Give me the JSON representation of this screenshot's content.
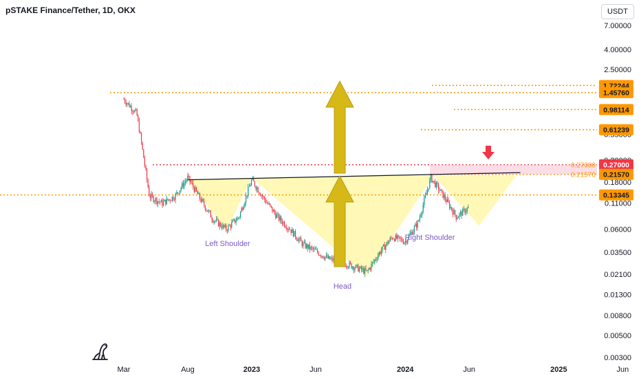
{
  "header": {
    "title": "pSTAKE Finance/Tether, 1D, OKX",
    "currency_button": "USDT"
  },
  "colors": {
    "orange": "#ff9800",
    "red": "#f23645",
    "pink": "#f8bbd0",
    "yellow_fill": "#fff59d",
    "arrow_yellow": "#d6b917",
    "candle_up": "#089981",
    "candle_down": "#f23645",
    "label_text": "#131722",
    "pattern_text": "#7e57c2"
  },
  "chart_data": {
    "type": "candlestick",
    "y_scale": "log",
    "y_ticks": [
      "7.00000",
      "4.00000",
      "2.50000",
      "1.50000",
      "0.95000",
      "0.55000",
      "0.30000",
      "0.18000",
      "0.11000",
      "0.06000",
      "0.03500",
      "0.02100",
      "0.01300",
      "0.00800",
      "0.00500",
      "0.00300"
    ],
    "x_ticks": [
      "Mar",
      "Aug",
      "2023",
      "Jun",
      "2024",
      "Jun",
      "2025",
      "Jun"
    ],
    "approx_close_path": [
      [
        "Mar 2022",
        1.25
      ],
      [
        "Apr 2022",
        0.9
      ],
      [
        "Apr 2022",
        0.5
      ],
      [
        "May 2022",
        0.13
      ],
      [
        "Jun 2022",
        0.11
      ],
      [
        "Jul 2022",
        0.13
      ],
      [
        "Aug 2022",
        0.2
      ],
      [
        "Sep 2022",
        0.12
      ],
      [
        "Oct 2022",
        0.075
      ],
      [
        "Nov 2022",
        0.06
      ],
      [
        "Dec 2022",
        0.08
      ],
      [
        "Jan 2023",
        0.19
      ],
      [
        "Feb 2023",
        0.12
      ],
      [
        "Mar 2023",
        0.08
      ],
      [
        "Apr 2023",
        0.06
      ],
      [
        "May 2023",
        0.042
      ],
      [
        "Jun 2023",
        0.036
      ],
      [
        "Jul 2023",
        0.03
      ],
      [
        "Aug 2023",
        0.028
      ],
      [
        "Sep 2023",
        0.025
      ],
      [
        "Oct 2023",
        0.022
      ],
      [
        "Nov 2023",
        0.035
      ],
      [
        "Dec 2023",
        0.05
      ],
      [
        "Jan 2024",
        0.045
      ],
      [
        "Feb 2024",
        0.07
      ],
      [
        "Mar 2024",
        0.2
      ],
      [
        "Apr 2024",
        0.13
      ],
      [
        "May 2024",
        0.08
      ],
      [
        "Jun 2024",
        0.1
      ]
    ],
    "price_levels": [
      {
        "label": "1.72244",
        "value": 1.72244,
        "color": "orange"
      },
      {
        "label": "1.45760",
        "value": 1.4576,
        "color": "orange"
      },
      {
        "label": "0.98114",
        "value": 0.98114,
        "color": "orange"
      },
      {
        "label": "0.61239",
        "value": 0.61239,
        "color": "orange"
      },
      {
        "label": "0.27000",
        "value": 0.27,
        "color": "red"
      },
      {
        "label": "0.21570",
        "value": 0.2157,
        "color": "orange"
      },
      {
        "label": "0.13345",
        "value": 0.13345,
        "color": "orange"
      }
    ],
    "side_labels": {
      "resistance": "0.27000",
      "neckline": "0.21570"
    },
    "annotations": {
      "left_shoulder": "Left Shoulder",
      "head": "Head",
      "right_shoulder": "Right Shoulder"
    },
    "neckline": {
      "from": [
        "Aug 2022",
        0.19
      ],
      "to": [
        "Oct 2024",
        0.225
      ]
    }
  }
}
